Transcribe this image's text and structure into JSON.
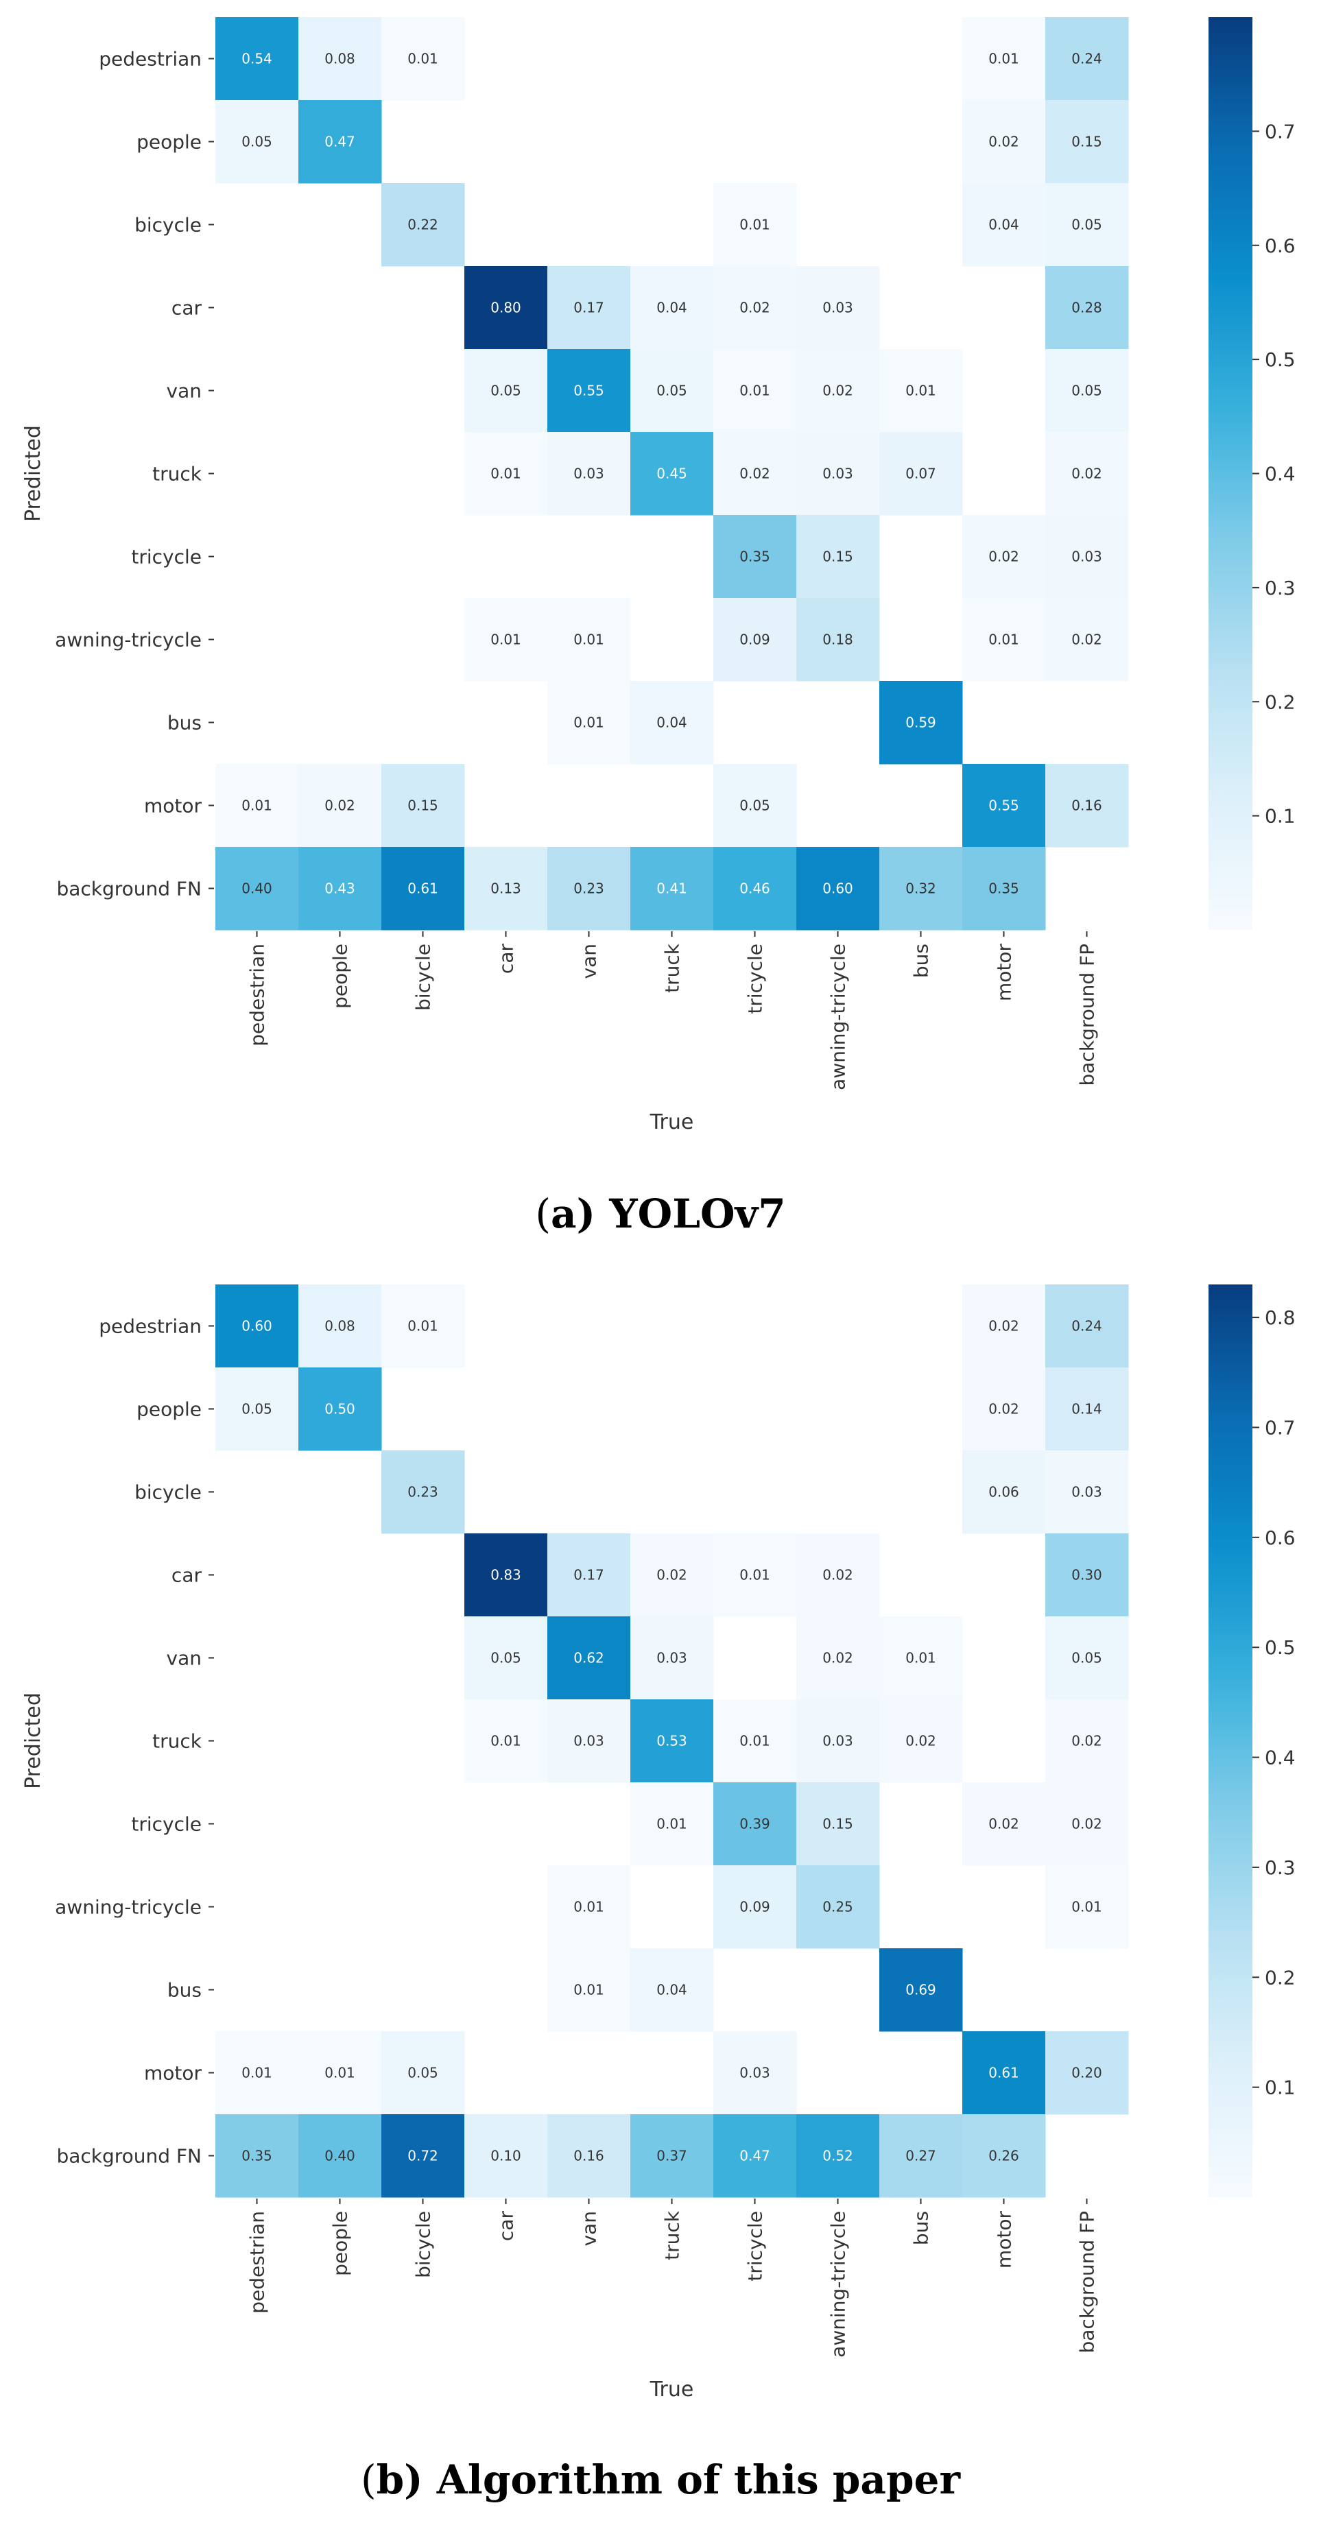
{
  "figure": {
    "panels": [
      {
        "caption_letter": "a",
        "caption_text": ") YOLOv7",
        "caption_open": "("
      },
      {
        "caption_letter": "b",
        "caption_text": ") Algorithm of this paper",
        "caption_open": "("
      }
    ]
  },
  "colormap": {
    "name": "Blues",
    "stops": [
      "#f7fbff",
      "#ddf0fa",
      "#b7e0f2",
      "#7fcbe8",
      "#38b0dc",
      "#0b8fcc",
      "#0a6cb2",
      "#083d7f"
    ]
  },
  "chart_data": [
    {
      "type": "heatmap",
      "title": "",
      "xlabel": "True",
      "ylabel": "Predicted",
      "x_categories": [
        "pedestrian",
        "people",
        "bicycle",
        "car",
        "van",
        "truck",
        "tricycle",
        "awning-tricycle",
        "bus",
        "motor",
        "background FP"
      ],
      "y_categories": [
        "pedestrian",
        "people",
        "bicycle",
        "car",
        "van",
        "truck",
        "tricycle",
        "awning-tricycle",
        "bus",
        "motor",
        "background FN"
      ],
      "values": [
        [
          0.54,
          0.08,
          0.01,
          null,
          null,
          null,
          null,
          null,
          null,
          0.01,
          0.24
        ],
        [
          0.05,
          0.47,
          null,
          null,
          null,
          null,
          null,
          null,
          null,
          0.02,
          0.15
        ],
        [
          null,
          null,
          0.22,
          null,
          null,
          null,
          0.01,
          null,
          null,
          0.04,
          0.05
        ],
        [
          null,
          null,
          null,
          0.8,
          0.17,
          0.04,
          0.02,
          0.03,
          null,
          null,
          0.28
        ],
        [
          null,
          null,
          null,
          0.05,
          0.55,
          0.05,
          0.01,
          0.02,
          0.01,
          null,
          0.05
        ],
        [
          null,
          null,
          null,
          0.01,
          0.03,
          0.45,
          0.02,
          0.03,
          0.07,
          null,
          0.02
        ],
        [
          null,
          null,
          null,
          null,
          null,
          null,
          0.35,
          0.15,
          null,
          0.02,
          0.03
        ],
        [
          null,
          null,
          null,
          0.01,
          0.01,
          null,
          0.09,
          0.18,
          null,
          0.01,
          0.02
        ],
        [
          null,
          null,
          null,
          null,
          0.01,
          0.04,
          null,
          null,
          0.59,
          null,
          null
        ],
        [
          0.01,
          0.02,
          0.15,
          null,
          null,
          null,
          0.05,
          null,
          null,
          0.55,
          0.16
        ],
        [
          0.4,
          0.43,
          0.61,
          0.13,
          0.23,
          0.41,
          0.46,
          0.6,
          0.32,
          0.35,
          null
        ]
      ],
      "vmin": 0.0,
      "vmax": 0.8,
      "colorbar_ticks": [
        0.1,
        0.2,
        0.3,
        0.4,
        0.5,
        0.6,
        0.7
      ]
    },
    {
      "type": "heatmap",
      "title": "",
      "xlabel": "True",
      "ylabel": "Predicted",
      "x_categories": [
        "pedestrian",
        "people",
        "bicycle",
        "car",
        "van",
        "truck",
        "tricycle",
        "awning-tricycle",
        "bus",
        "motor",
        "background FP"
      ],
      "y_categories": [
        "pedestrian",
        "people",
        "bicycle",
        "car",
        "van",
        "truck",
        "tricycle",
        "awning-tricycle",
        "bus",
        "motor",
        "background FN"
      ],
      "values": [
        [
          0.6,
          0.08,
          0.01,
          null,
          null,
          null,
          null,
          null,
          null,
          0.02,
          0.24
        ],
        [
          0.05,
          0.5,
          null,
          null,
          null,
          null,
          null,
          null,
          null,
          0.02,
          0.14
        ],
        [
          null,
          null,
          0.23,
          null,
          null,
          null,
          null,
          null,
          null,
          0.06,
          0.03
        ],
        [
          null,
          null,
          null,
          0.83,
          0.17,
          0.02,
          0.01,
          0.02,
          null,
          null,
          0.3
        ],
        [
          null,
          null,
          null,
          0.05,
          0.62,
          0.03,
          null,
          0.02,
          0.01,
          null,
          0.05
        ],
        [
          null,
          null,
          null,
          0.01,
          0.03,
          0.53,
          0.01,
          0.03,
          0.02,
          null,
          0.02
        ],
        [
          null,
          null,
          null,
          null,
          null,
          0.01,
          0.39,
          0.15,
          null,
          0.02,
          0.02
        ],
        [
          null,
          null,
          null,
          null,
          0.01,
          null,
          0.09,
          0.25,
          null,
          null,
          0.01
        ],
        [
          null,
          null,
          null,
          null,
          0.01,
          0.04,
          null,
          null,
          0.69,
          null,
          null
        ],
        [
          0.01,
          0.01,
          0.05,
          null,
          null,
          null,
          0.03,
          null,
          null,
          0.61,
          0.2
        ],
        [
          0.35,
          0.4,
          0.72,
          0.1,
          0.16,
          0.37,
          0.47,
          0.52,
          0.27,
          0.26,
          null
        ]
      ],
      "vmin": 0.0,
      "vmax": 0.83,
      "colorbar_ticks": [
        0.1,
        0.2,
        0.3,
        0.4,
        0.5,
        0.6,
        0.7,
        0.8
      ]
    }
  ]
}
